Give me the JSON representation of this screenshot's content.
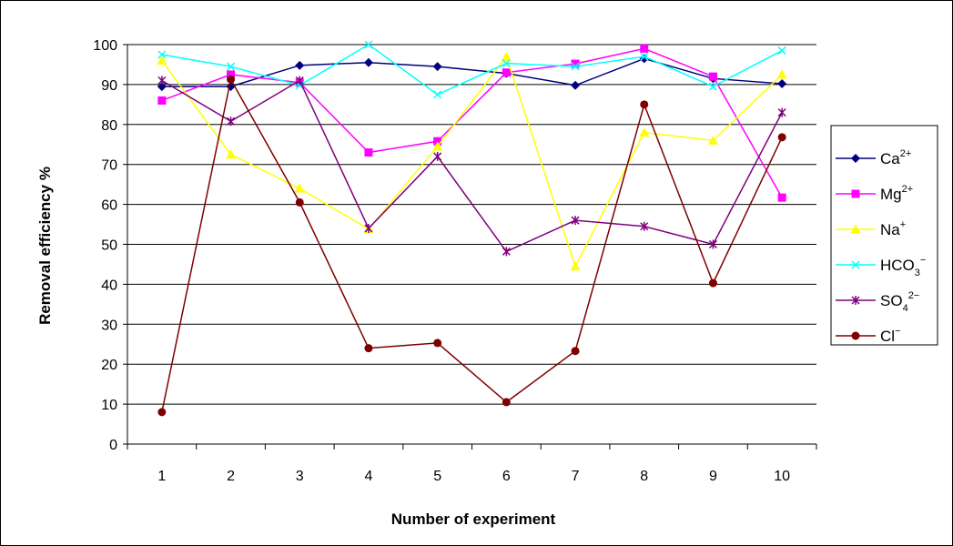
{
  "chart_data": {
    "type": "line",
    "title": "",
    "xlabel": "Number of experiment",
    "ylabel": "Removal efficiency %",
    "categories": [
      "1",
      "2",
      "3",
      "4",
      "5",
      "6",
      "7",
      "8",
      "9",
      "10"
    ],
    "y_ticks": [
      "0",
      "10",
      "20",
      "30",
      "40",
      "50",
      "60",
      "70",
      "80",
      "90",
      "100"
    ],
    "ylim": [
      0,
      100
    ],
    "grid": "horizontal",
    "legend_position": "right",
    "series": [
      {
        "name": "Ca2+",
        "label_base": "Ca",
        "label_sup": "2+",
        "label_sub": "",
        "color": "#00007f",
        "marker": "diamond",
        "values": [
          89.5,
          89.5,
          94.8,
          95.5,
          94.5,
          92.8,
          89.8,
          96.5,
          91.5,
          90.2
        ]
      },
      {
        "name": "Mg2+",
        "label_base": "Mg",
        "label_sup": "2+",
        "label_sub": "",
        "color": "#ff00ff",
        "marker": "square",
        "values": [
          86,
          92.5,
          90.5,
          73,
          75.8,
          93,
          95.2,
          99,
          92,
          61.7
        ]
      },
      {
        "name": "Na+",
        "label_base": "Na",
        "label_sup": "+",
        "label_sub": "",
        "color": "#ffff00",
        "marker": "triangle",
        "values": [
          96,
          72.5,
          64,
          53.8,
          74.5,
          97,
          44.5,
          78,
          76,
          92.5
        ]
      },
      {
        "name": "HCO3-",
        "label_base": "HCO",
        "label_sup": "−",
        "label_sub": "3",
        "color": "#00ffff",
        "marker": "x",
        "values": [
          97.5,
          94.5,
          89.8,
          100,
          87.5,
          95.3,
          94.5,
          97,
          89.5,
          98.5
        ]
      },
      {
        "name": "SO42-",
        "label_base": "SO",
        "label_sup": "2−",
        "label_sub": "4",
        "color": "#7f007f",
        "marker": "asterisk",
        "values": [
          91,
          80.8,
          91,
          54,
          72,
          48.2,
          56,
          54.5,
          50,
          83
        ]
      },
      {
        "name": "Cl-",
        "label_base": "Cl",
        "label_sup": "−",
        "label_sub": "",
        "color": "#7f0000",
        "marker": "circle",
        "values": [
          8,
          91.3,
          60.5,
          24,
          25.3,
          10.5,
          23.3,
          85,
          40.3,
          76.8
        ]
      }
    ]
  }
}
